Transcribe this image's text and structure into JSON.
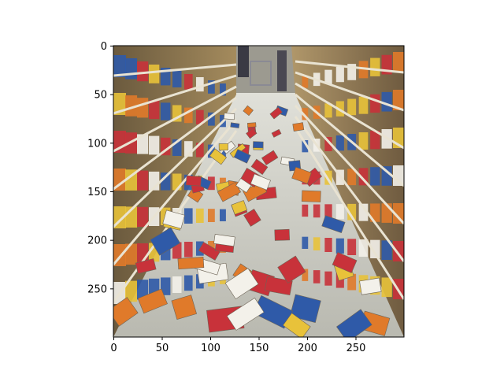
{
  "image_axes": {
    "x_ticks": [
      "0",
      "50",
      "100",
      "150",
      "200",
      "250"
    ],
    "y_ticks": [
      "0",
      "50",
      "100",
      "150",
      "200",
      "250"
    ],
    "x_range": [
      0,
      300
    ],
    "y_range": [
      0,
      300
    ],
    "y_inverted": true
  },
  "photo": {
    "subject": "grocery store aisle with cereal boxes fallen on the floor",
    "colors": {
      "floor": "#cfcfc6",
      "shelf_shadow": "#5a5248",
      "ceiling_light": "#f2f0ea",
      "box_red": "#c8323a",
      "box_yellow": "#e8c23a",
      "box_blue": "#2f5aa8",
      "box_orange": "#e07a2a",
      "box_white": "#f3f1ea"
    }
  }
}
